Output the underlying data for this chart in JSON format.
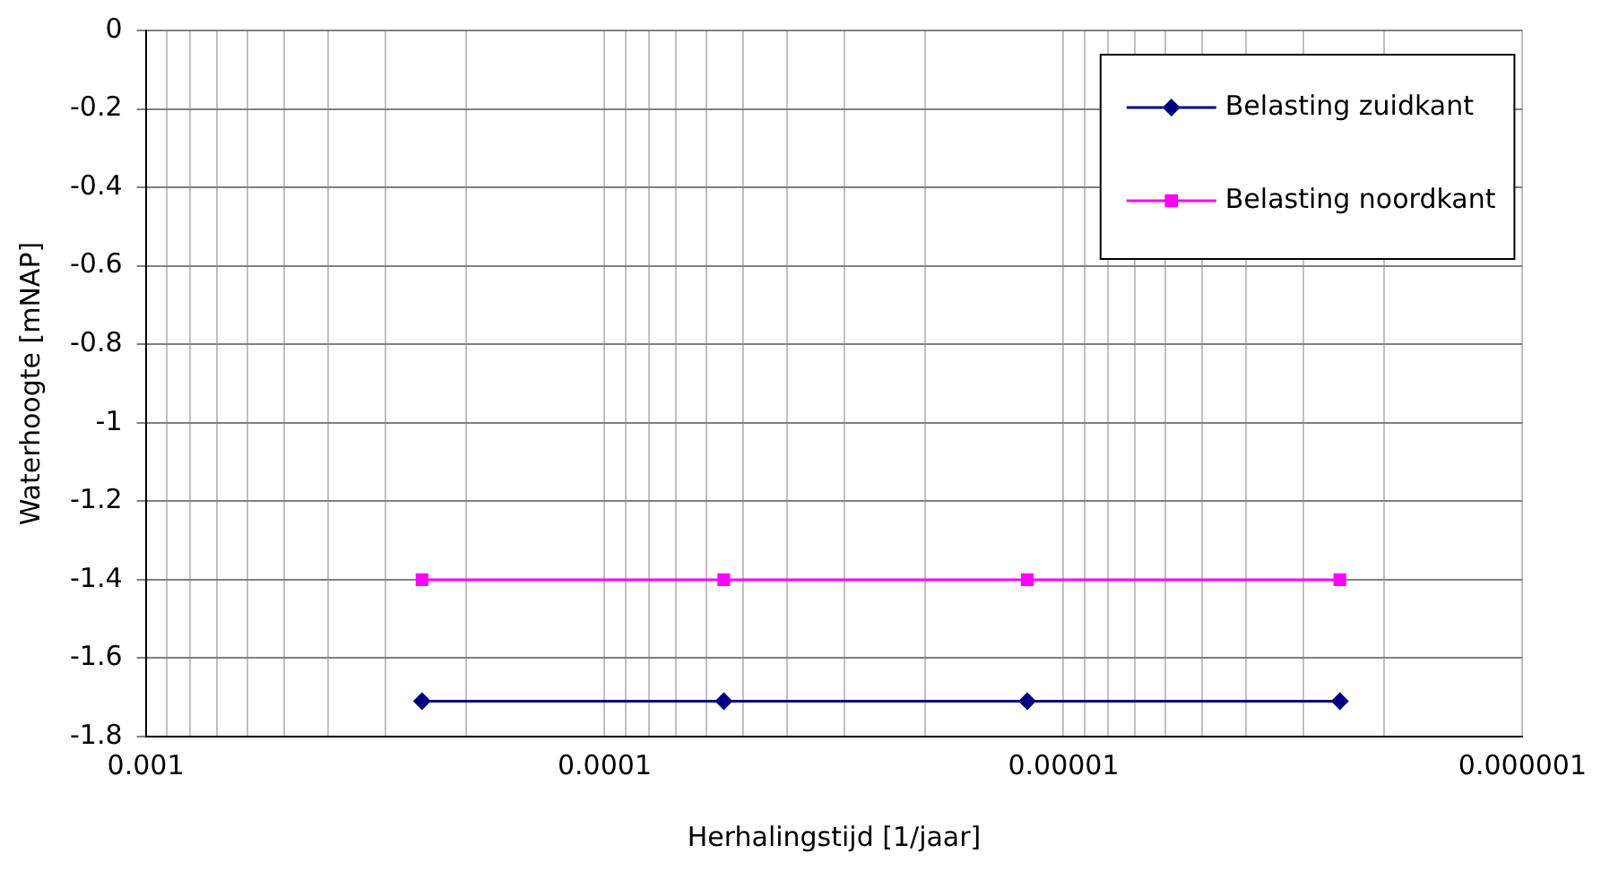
{
  "chart_data": {
    "type": "line",
    "xlabel": "Herhalingstijd [1/jaar]",
    "ylabel": "Waterhoogte [mNAP]",
    "log": "x",
    "xlim": [
      0.001,
      1e-06
    ],
    "xticks": [
      {
        "value": 0.001,
        "label": "0.001"
      },
      {
        "value": 0.0009,
        "label": null
      },
      {
        "value": 0.0008,
        "label": null
      },
      {
        "value": 0.0007,
        "label": null
      },
      {
        "value": 0.0006,
        "label": null
      },
      {
        "value": 0.0005,
        "label": null
      },
      {
        "value": 0.0004,
        "label": null
      },
      {
        "value": 0.0003,
        "label": null
      },
      {
        "value": 0.0002,
        "label": null
      },
      {
        "value": 0.0001,
        "label": "0.0001"
      },
      {
        "value": 9e-05,
        "label": null
      },
      {
        "value": 8e-05,
        "label": null
      },
      {
        "value": 7e-05,
        "label": null
      },
      {
        "value": 6e-05,
        "label": null
      },
      {
        "value": 5e-05,
        "label": null
      },
      {
        "value": 4e-05,
        "label": null
      },
      {
        "value": 3e-05,
        "label": null
      },
      {
        "value": 2e-05,
        "label": null
      },
      {
        "value": 1e-05,
        "label": "0.00001"
      },
      {
        "value": 9e-06,
        "label": null
      },
      {
        "value": 8e-06,
        "label": null
      },
      {
        "value": 7e-06,
        "label": null
      },
      {
        "value": 6e-06,
        "label": null
      },
      {
        "value": 5e-06,
        "label": null
      },
      {
        "value": 4e-06,
        "label": null
      },
      {
        "value": 3e-06,
        "label": null
      },
      {
        "value": 2e-06,
        "label": null
      },
      {
        "value": 1e-06,
        "label": "0.000001"
      }
    ],
    "ylim": [
      -1.8,
      0
    ],
    "yticks": [
      0,
      -0.2,
      -0.4,
      -0.6,
      -0.8,
      -1,
      -1.2,
      -1.4,
      -1.6,
      -1.8
    ],
    "grid": true,
    "legend": "top right",
    "line_style": "solid",
    "series": [
      {
        "name": "Belasting zuidkant",
        "color": "#000080",
        "marker": "diamond",
        "x": [
          0.00025,
          5.5e-05,
          1.2e-05,
          2.5e-06
        ],
        "values": [
          -1.71,
          -1.71,
          -1.71,
          -1.71
        ]
      },
      {
        "name": "Belasting noordkant",
        "color": "#ff00ff",
        "marker": "square",
        "x": [
          0.00025,
          5.5e-05,
          1.2e-05,
          2.5e-06
        ],
        "values": [
          -1.4,
          -1.4,
          -1.4,
          -1.4
        ]
      }
    ]
  }
}
